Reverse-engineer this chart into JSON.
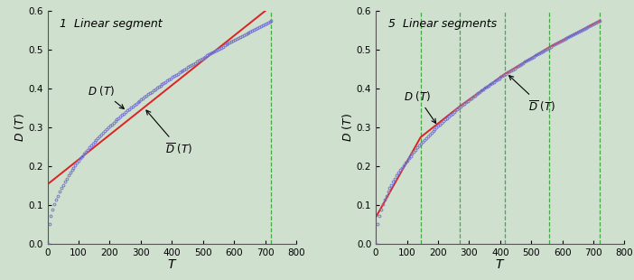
{
  "T_max": 720,
  "x_max": 800,
  "y_max": 0.6,
  "bg_color": "#cfe0cf",
  "curve_color": "#7777cc",
  "approx_color": "#dd2222",
  "vline_color": "#44aa44",
  "panel1_title": "1  Linear segment",
  "panel2_title": "5  Linear segments",
  "panel1_vlines": [
    720
  ],
  "panel2_vlines": [
    144,
    270,
    414,
    558,
    720
  ],
  "xlabel": "T",
  "yticks": [
    0,
    0.1,
    0.2,
    0.3,
    0.4,
    0.5,
    0.6
  ],
  "xticks": [
    0,
    100,
    200,
    300,
    400,
    500,
    600,
    700,
    800
  ],
  "scale": 0.02143,
  "annotation_fontsize": 8.5
}
